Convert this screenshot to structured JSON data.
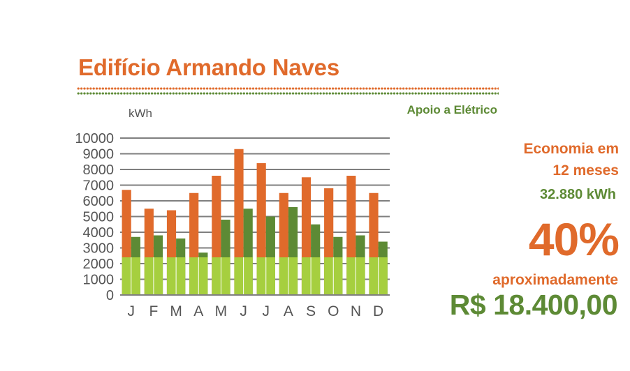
{
  "header": {
    "title": "Edifício Armando Naves",
    "subtitle": "Apoio a Elétrico"
  },
  "summary": {
    "economy_label_line1": "Economia em",
    "economy_label_line2": "12 meses",
    "energy_saved": "32.880 kWh",
    "percentage": "40%",
    "approx_label": "aproximadamente",
    "money_saved": "R$ 18.400,00"
  },
  "colors": {
    "orange": "#e06a2b",
    "dark_green": "#5d8a35",
    "light_green": "#a6cf3f",
    "grid": "#7f7f7f"
  },
  "chart_data": {
    "type": "bar",
    "ylabel": "kWh",
    "ylim": [
      0,
      10000
    ],
    "yticks": [
      0,
      1000,
      2000,
      3000,
      4000,
      5000,
      6000,
      7000,
      8000,
      9000,
      10000
    ],
    "grid": true,
    "categories": [
      "J",
      "F",
      "M",
      "A",
      "M",
      "J",
      "J",
      "A",
      "S",
      "O",
      "N",
      "D"
    ],
    "base_level": 2400,
    "series": [
      {
        "values": [
          6700,
          5500,
          5400,
          6500,
          7600,
          9300,
          8400,
          6500,
          7500,
          6800,
          7600,
          6500
        ]
      },
      {
        "values": [
          3700,
          3800,
          3600,
          2700,
          4800,
          5500,
          5000,
          5600,
          4500,
          3700,
          3800,
          3400
        ]
      }
    ]
  }
}
